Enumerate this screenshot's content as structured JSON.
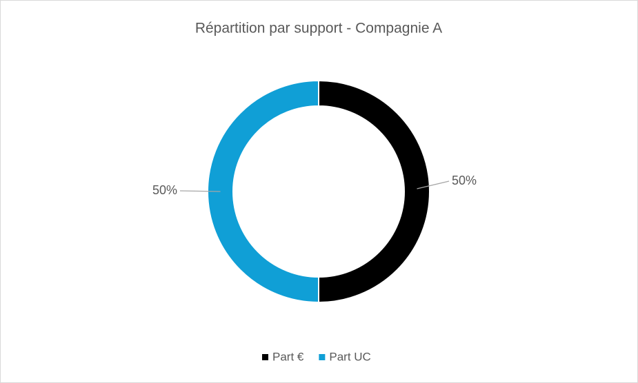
{
  "chart_data": {
    "type": "doughnut",
    "title": "Répartition par support - Compagnie A",
    "categories": [
      "Part €",
      "Part UC"
    ],
    "values": [
      50,
      50
    ],
    "value_labels": [
      "50%",
      "50%"
    ],
    "colors": [
      "#000000",
      "#109fd6"
    ],
    "legend": "bottom"
  }
}
